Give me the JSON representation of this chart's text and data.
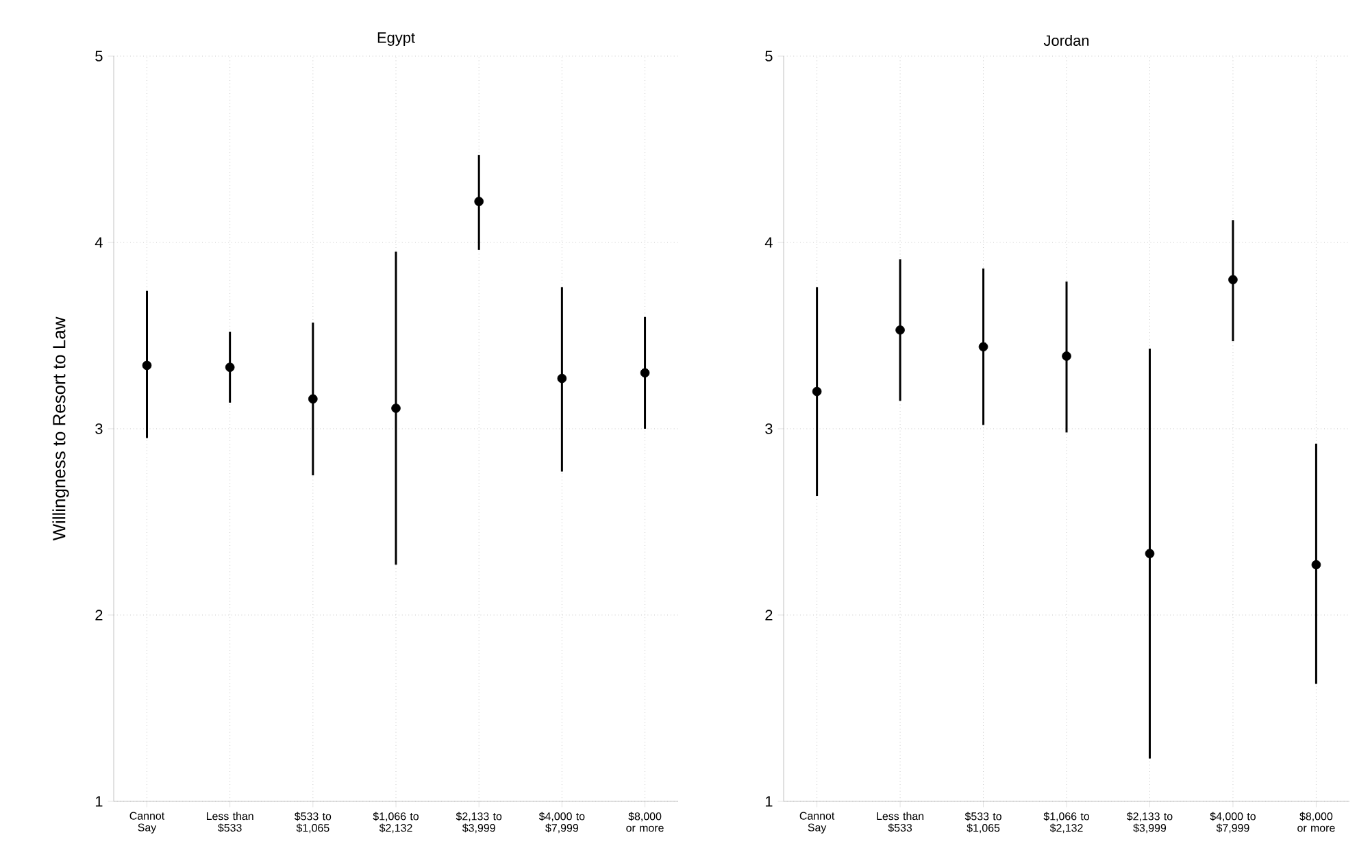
{
  "chart_data": [
    {
      "type": "scatter",
      "title": "Egypt",
      "ylabel": "Willingness to Resort to Law",
      "categories": [
        "Cannot Say",
        "Less than $533",
        "$533 to $1,065",
        "$1,066 to $2,132",
        "$2,133 to $3,999",
        "$4,000 to $7,999",
        "$8,000 or more"
      ],
      "values": [
        3.34,
        3.33,
        3.16,
        3.11,
        4.22,
        3.27,
        3.3
      ],
      "errors": [
        [
          2.95,
          3.74
        ],
        [
          3.14,
          3.52
        ],
        [
          2.75,
          3.57
        ],
        [
          2.27,
          3.95
        ],
        [
          3.96,
          4.47
        ],
        [
          2.77,
          3.76
        ],
        [
          3.0,
          3.6
        ]
      ],
      "color": "#000000",
      "marker": "circle",
      "grid": true,
      "ylim": [
        1,
        5
      ],
      "yticks": [
        1,
        2,
        3,
        4,
        5
      ]
    },
    {
      "type": "scatter",
      "title": "Jordan",
      "categories": [
        "Cannot Say",
        "Less than $533",
        "$533 to $1,065",
        "$1,066 to $2,132",
        "$2,133 to $3,999",
        "$4,000 to $7,999",
        "$8,000 or more"
      ],
      "values": [
        3.2,
        3.53,
        3.44,
        3.39,
        2.33,
        3.8,
        2.27
      ],
      "errors": [
        [
          2.64,
          3.76
        ],
        [
          3.15,
          3.91
        ],
        [
          3.02,
          3.86
        ],
        [
          2.98,
          3.79
        ],
        [
          1.23,
          3.43
        ],
        [
          3.47,
          4.12
        ],
        [
          1.63,
          2.92
        ]
      ],
      "color": "#000000",
      "marker": "circle",
      "grid": true,
      "ylim": [
        1,
        5
      ],
      "yticks": [
        1,
        2,
        3,
        4,
        5
      ]
    }
  ]
}
